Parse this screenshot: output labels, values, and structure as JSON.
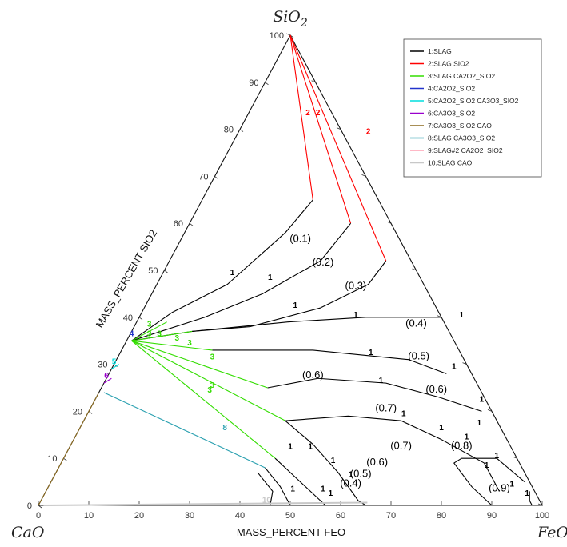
{
  "chart_data": {
    "type": "ternary",
    "apex_labels": {
      "top": "SiO",
      "top_sub": "2",
      "left": "CaO",
      "right": "FeO"
    },
    "left_axis_title": "MASS_PERCENT SIO2",
    "bottom_axis_title": "MASS_PERCENT FEO",
    "left_ticks": [
      "0",
      "10",
      "20",
      "30",
      "40",
      "50",
      "60",
      "70",
      "80",
      "90",
      "100"
    ],
    "bottom_ticks": [
      "0",
      "10",
      "20",
      "30",
      "40",
      "50",
      "60",
      "70",
      "80",
      "90",
      "100"
    ],
    "legend": [
      {
        "label": "1:SLAG",
        "color": "#000000"
      },
      {
        "label": "2:SLAG SIO2",
        "color": "#ff0000"
      },
      {
        "label": "3:SLAG CA2O2_SIO2",
        "color": "#33dd00"
      },
      {
        "label": "4:CA2O2_SIO2",
        "color": "#2233cc"
      },
      {
        "label": "5:CA2O2_SIO2 CA3O3_SIO2",
        "color": "#00dddd"
      },
      {
        "label": "6:CA3O3_SIO2",
        "color": "#9900cc"
      },
      {
        "label": "7:CA3O3_SIO2 CAO",
        "color": "#8b6a1e"
      },
      {
        "label": "8:SLAG CA3O3_SIO2",
        "color": "#2aa0b0"
      },
      {
        "label": "9:SLAG#2 CA2O2_SIO2",
        "color": "#ffa0b4"
      },
      {
        "label": "10:SLAG CAO",
        "color": "#c8c8c8"
      }
    ],
    "activity_labels": [
      {
        "text": "(0.1)",
        "x": 24,
        "y": 56
      },
      {
        "text": "(0.2)",
        "x": 31,
        "y": 51
      },
      {
        "text": "(0.3)",
        "x": 40,
        "y": 46
      },
      {
        "text": "(0.4)",
        "x": 56,
        "y": 38
      },
      {
        "text": "(0.5)",
        "x": 60,
        "y": 31
      },
      {
        "text": "(0.6)",
        "x": 41,
        "y": 27
      },
      {
        "text": "(0.6)",
        "x": 67,
        "y": 24
      },
      {
        "text": "(0.7)",
        "x": 59,
        "y": 20
      },
      {
        "text": "(0.7)",
        "x": 66,
        "y": 12
      },
      {
        "text": "(0.8)",
        "x": 78,
        "y": 12
      },
      {
        "text": "(0.6)",
        "x": 63,
        "y": 8.5
      },
      {
        "text": "(0.5)",
        "x": 61,
        "y": 6
      },
      {
        "text": "(0.4)",
        "x": 60,
        "y": 4
      },
      {
        "text": "(0.9)",
        "x": 90,
        "y": 3
      }
    ],
    "curves": [
      {
        "type": 2,
        "points": [
          [
            0,
            100
          ],
          [
            22,
            65
          ]
        ]
      },
      {
        "type": 2,
        "points": [
          [
            0,
            100
          ],
          [
            32,
            60
          ]
        ]
      },
      {
        "type": 2,
        "points": [
          [
            0,
            100
          ],
          [
            43,
            52
          ]
        ]
      },
      {
        "type": 1,
        "points": [
          [
            22,
            65
          ],
          [
            20,
            58
          ],
          [
            14,
            47
          ],
          [
            6,
            41
          ],
          [
            1,
            35
          ]
        ]
      },
      {
        "type": 1,
        "points": [
          [
            32,
            60
          ],
          [
            30,
            52
          ],
          [
            22,
            45
          ],
          [
            13,
            40
          ],
          [
            1,
            35
          ]
        ]
      },
      {
        "type": 1,
        "points": [
          [
            43,
            52
          ],
          [
            42,
            47
          ],
          [
            35,
            42
          ],
          [
            23,
            38
          ],
          [
            12,
            37
          ],
          [
            1,
            35
          ]
        ]
      },
      {
        "type": 1,
        "points": [
          [
            12,
            37
          ],
          [
            30,
            39
          ],
          [
            45,
            40
          ],
          [
            60,
            40
          ]
        ]
      },
      {
        "type": 1,
        "points": [
          [
            18,
            33
          ],
          [
            38,
            33
          ],
          [
            58,
            31
          ],
          [
            67,
            28
          ]
        ]
      },
      {
        "type": 1,
        "points": [
          [
            33,
            25
          ],
          [
            42,
            27
          ],
          [
            56,
            26
          ],
          [
            68,
            23
          ],
          [
            78,
            20
          ]
        ]
      },
      {
        "type": 1,
        "points": [
          [
            40,
            18
          ],
          [
            52,
            19
          ],
          [
            63,
            18
          ],
          [
            73,
            14
          ],
          [
            84,
            9
          ],
          [
            90,
            3
          ]
        ]
      },
      {
        "type": 1,
        "points": [
          [
            40,
            18
          ],
          [
            48,
            13
          ],
          [
            56,
            7
          ],
          [
            63,
            1
          ],
          [
            65,
            0
          ]
        ]
      },
      {
        "type": 1,
        "points": [
          [
            94,
            5
          ],
          [
            86,
            10
          ],
          [
            79,
            10
          ],
          [
            78,
            9
          ],
          [
            84,
            4
          ],
          [
            90,
            0
          ]
        ]
      },
      {
        "type": 1,
        "points": [
          [
            42,
            10
          ],
          [
            48,
            6
          ],
          [
            54,
            2
          ],
          [
            57,
            0
          ]
        ]
      },
      {
        "type": 1,
        "points": [
          [
            41,
            8
          ],
          [
            46,
            4
          ],
          [
            50,
            0
          ]
        ]
      },
      {
        "type": 1,
        "points": [
          [
            40,
            7
          ],
          [
            45,
            3
          ],
          [
            46,
            0
          ]
        ]
      },
      {
        "type": 1,
        "points": [
          [
            96,
            3
          ],
          [
            97,
            1
          ],
          [
            98,
            0
          ]
        ]
      },
      {
        "type": 3,
        "points": [
          [
            1,
            35
          ],
          [
            6,
            39
          ]
        ]
      },
      {
        "type": 3,
        "points": [
          [
            1,
            35
          ],
          [
            12,
            37
          ]
        ]
      },
      {
        "type": 3,
        "points": [
          [
            1,
            35
          ],
          [
            18,
            33
          ]
        ]
      },
      {
        "type": 3,
        "points": [
          [
            1,
            35
          ],
          [
            33,
            25
          ]
        ]
      },
      {
        "type": 3,
        "points": [
          [
            1,
            35
          ],
          [
            40,
            18
          ]
        ]
      },
      {
        "type": 3,
        "points": [
          [
            1,
            35
          ],
          [
            42,
            10
          ]
        ]
      },
      {
        "type": 8,
        "points": [
          [
            1,
            24
          ],
          [
            41,
            8
          ]
        ]
      },
      {
        "type": 10,
        "points": [
          [
            1,
            0
          ],
          [
            65,
            0.6
          ]
        ]
      },
      {
        "type": 6,
        "points": [
          [
            0,
            26
          ],
          [
            1,
            27
          ]
        ]
      },
      {
        "type": 5,
        "points": [
          [
            0,
            29
          ],
          [
            1,
            30
          ]
        ]
      },
      {
        "type": 7,
        "points": [
          [
            0,
            0
          ],
          [
            0,
            24
          ]
        ]
      }
    ],
    "inline_labels": [
      {
        "text": "2",
        "type": 2,
        "x": 12,
        "y": 83
      },
      {
        "text": "2",
        "type": 2,
        "x": 14,
        "y": 83
      },
      {
        "text": "2",
        "type": 2,
        "x": 26,
        "y": 79
      },
      {
        "text": "1",
        "type": 1,
        "x": 14,
        "y": 49
      },
      {
        "text": "1",
        "type": 1,
        "x": 22,
        "y": 48
      },
      {
        "text": "1",
        "type": 1,
        "x": 30,
        "y": 42
      },
      {
        "text": "1",
        "type": 1,
        "x": 43,
        "y": 40
      },
      {
        "text": "1",
        "type": 1,
        "x": 64,
        "y": 40
      },
      {
        "text": "1",
        "type": 1,
        "x": 50,
        "y": 32
      },
      {
        "text": "1",
        "type": 1,
        "x": 68,
        "y": 29
      },
      {
        "text": "1",
        "type": 1,
        "x": 55,
        "y": 26
      },
      {
        "text": "1",
        "type": 1,
        "x": 77,
        "y": 22
      },
      {
        "text": "1",
        "type": 1,
        "x": 63,
        "y": 19
      },
      {
        "text": "1",
        "type": 1,
        "x": 72,
        "y": 16
      },
      {
        "text": "1",
        "type": 1,
        "x": 78,
        "y": 14
      },
      {
        "text": "1",
        "type": 1,
        "x": 86,
        "y": 10
      },
      {
        "text": "1",
        "type": 1,
        "x": 92,
        "y": 4
      },
      {
        "text": "1",
        "type": 1,
        "x": 44,
        "y": 12
      },
      {
        "text": "1",
        "type": 1,
        "x": 48,
        "y": 12
      },
      {
        "text": "1",
        "type": 1,
        "x": 54,
        "y": 9
      },
      {
        "text": "1",
        "type": 1,
        "x": 59,
        "y": 6
      },
      {
        "text": "1",
        "type": 1,
        "x": 55,
        "y": 3
      },
      {
        "text": "1",
        "type": 1,
        "x": 49,
        "y": 3
      },
      {
        "text": "1",
        "type": 1,
        "x": 57,
        "y": 2
      },
      {
        "text": "1",
        "type": 1,
        "x": 79,
        "y": 17
      },
      {
        "text": "1",
        "type": 1,
        "x": 85,
        "y": 8
      },
      {
        "text": "1",
        "type": 1,
        "x": 96,
        "y": 2
      },
      {
        "text": "3",
        "type": 3,
        "x": 3,
        "y": 38
      },
      {
        "text": "3",
        "type": 3,
        "x": 4,
        "y": 36
      },
      {
        "text": "3",
        "type": 3,
        "x": 6,
        "y": 36
      },
      {
        "text": "3",
        "type": 3,
        "x": 10,
        "y": 35
      },
      {
        "text": "3",
        "type": 3,
        "x": 13,
        "y": 34
      },
      {
        "text": "3",
        "type": 3,
        "x": 19,
        "y": 31
      },
      {
        "text": "3",
        "type": 3,
        "x": 22,
        "y": 25
      },
      {
        "text": "3",
        "type": 3,
        "x": 22,
        "y": 24
      },
      {
        "text": "4",
        "type": 4,
        "x": 0.5,
        "y": 36
      },
      {
        "text": "5",
        "type": 5,
        "x": 0,
        "y": 30
      },
      {
        "text": "6",
        "type": 6,
        "x": 0,
        "y": 27
      },
      {
        "text": "8",
        "type": 8,
        "x": 29,
        "y": 16
      },
      {
        "text": "10",
        "type": 10,
        "x": 45,
        "y": 0.6
      }
    ]
  }
}
